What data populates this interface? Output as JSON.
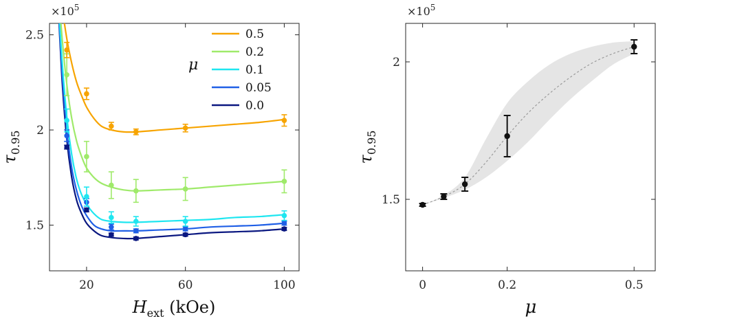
{
  "chart_data": [
    {
      "type": "line",
      "xlabel_main": "H",
      "xlabel_sub": "ext",
      "xlabel_unit": " (kOe)",
      "ylabel_main": "τ",
      "ylabel_sub": "0.95",
      "y_multiplier": "×10",
      "y_multiplier_exp": "5",
      "xlim": [
        5,
        106
      ],
      "ylim": [
        1.26,
        2.56
      ],
      "xticks": [
        20,
        60,
        100
      ],
      "xtick_labels": [
        "20",
        "60",
        "100"
      ],
      "ytick_labels": [
        "1.5",
        "2",
        "2.5"
      ],
      "yticks": [
        1.5,
        2.0,
        2.5
      ],
      "legend_title": "μ",
      "series": [
        {
          "name": "0.5",
          "color": "#F7A400",
          "x": [
            12,
            20,
            30,
            40,
            60,
            100
          ],
          "y": [
            2.42,
            2.19,
            2.02,
            1.99,
            2.01,
            2.05
          ],
          "err": [
            0.04,
            0.03,
            0.02,
            0.015,
            0.02,
            0.03
          ],
          "fit_x": [
            8,
            10,
            12,
            14,
            16,
            18,
            20,
            23,
            26,
            30,
            35,
            40,
            50,
            60,
            70,
            80,
            90,
            100
          ],
          "fit_y": [
            2.9,
            2.66,
            2.48,
            2.35,
            2.25,
            2.18,
            2.12,
            2.06,
            2.02,
            2.0,
            1.99,
            1.99,
            2.0,
            2.01,
            2.02,
            2.03,
            2.04,
            2.055
          ]
        },
        {
          "name": "0.2",
          "color": "#9FEA6A",
          "x": [
            12,
            20,
            30,
            40,
            60,
            100
          ],
          "y": [
            2.29,
            1.86,
            1.71,
            1.68,
            1.69,
            1.73
          ],
          "err": [
            0.11,
            0.08,
            0.07,
            0.06,
            0.06,
            0.06
          ],
          "fit_x": [
            8,
            10,
            12,
            14,
            16,
            18,
            20,
            23,
            26,
            30,
            35,
            40,
            50,
            60,
            70,
            80,
            90,
            100
          ],
          "fit_y": [
            2.85,
            2.5,
            2.24,
            2.06,
            1.94,
            1.86,
            1.8,
            1.75,
            1.72,
            1.7,
            1.685,
            1.68,
            1.685,
            1.69,
            1.7,
            1.71,
            1.72,
            1.73
          ]
        },
        {
          "name": "0.1",
          "color": "#1EE6F0",
          "x": [
            12,
            20,
            30,
            40,
            60,
            100
          ],
          "y": [
            2.05,
            1.65,
            1.54,
            1.52,
            1.52,
            1.55
          ],
          "err": [
            0.06,
            0.05,
            0.03,
            0.025,
            0.025,
            0.025
          ],
          "fit_x": [
            8,
            10,
            12,
            14,
            16,
            18,
            20,
            23,
            26,
            30,
            35,
            40,
            50,
            60,
            70,
            80,
            90,
            100
          ],
          "fit_y": [
            2.8,
            2.38,
            2.07,
            1.87,
            1.74,
            1.66,
            1.61,
            1.56,
            1.53,
            1.52,
            1.515,
            1.515,
            1.52,
            1.525,
            1.53,
            1.54,
            1.545,
            1.555
          ]
        },
        {
          "name": "0.05",
          "color": "#1F5FE6",
          "x": [
            12,
            20,
            30,
            40,
            60,
            100
          ],
          "y": [
            1.97,
            1.62,
            1.49,
            1.47,
            1.48,
            1.51
          ],
          "err": [
            0.03,
            0.02,
            0.015,
            0.01,
            0.01,
            0.01
          ],
          "fit_x": [
            8,
            10,
            12,
            14,
            16,
            18,
            20,
            23,
            26,
            30,
            35,
            40,
            50,
            60,
            70,
            80,
            90,
            100
          ],
          "fit_y": [
            2.8,
            2.32,
            2.0,
            1.8,
            1.68,
            1.6,
            1.55,
            1.5,
            1.48,
            1.47,
            1.47,
            1.47,
            1.475,
            1.48,
            1.49,
            1.495,
            1.5,
            1.51
          ]
        },
        {
          "name": "0.0",
          "color": "#0A1780",
          "x": [
            12,
            20,
            30,
            40,
            60,
            100
          ],
          "y": [
            1.91,
            1.58,
            1.45,
            1.43,
            1.45,
            1.48
          ],
          "err": [
            0.01,
            0.01,
            0.008,
            0.008,
            0.008,
            0.008
          ],
          "fit_x": [
            8,
            10,
            12,
            14,
            16,
            18,
            20,
            23,
            26,
            30,
            35,
            40,
            50,
            60,
            70,
            80,
            90,
            100
          ],
          "fit_y": [
            2.8,
            2.28,
            1.95,
            1.75,
            1.63,
            1.56,
            1.51,
            1.47,
            1.445,
            1.435,
            1.43,
            1.43,
            1.44,
            1.45,
            1.46,
            1.465,
            1.47,
            1.48
          ]
        }
      ]
    },
    {
      "type": "scatter",
      "xlabel_main": "μ",
      "ylabel_main": "τ",
      "ylabel_sub": "0.95",
      "y_multiplier": "×10",
      "y_multiplier_exp": "5",
      "xlim": [
        -0.04,
        0.55
      ],
      "ylim": [
        1.24,
        2.14
      ],
      "xticks": [
        0,
        0.2,
        0.5
      ],
      "xtick_labels": [
        "0",
        "0.2",
        "0.5"
      ],
      "yticks": [
        1.5,
        2.0
      ],
      "ytick_labels": [
        "1.5",
        "2"
      ],
      "series": [
        {
          "name": "tau",
          "color": "#111111",
          "x": [
            0,
            0.05,
            0.1,
            0.2,
            0.5
          ],
          "y": [
            1.48,
            1.51,
            1.555,
            1.73,
            2.055
          ],
          "err": [
            0.005,
            0.01,
            0.025,
            0.075,
            0.025
          ]
        }
      ],
      "fit": {
        "x": [
          0,
          0.05,
          0.1,
          0.15,
          0.2,
          0.25,
          0.3,
          0.35,
          0.4,
          0.45,
          0.5
        ],
        "y": [
          1.48,
          1.51,
          1.555,
          1.635,
          1.73,
          1.815,
          1.885,
          1.945,
          1.995,
          2.03,
          2.055
        ]
      },
      "band": {
        "x": [
          0,
          0.05,
          0.1,
          0.15,
          0.2,
          0.25,
          0.3,
          0.35,
          0.4,
          0.45,
          0.5
        ],
        "upper": [
          1.48,
          1.515,
          1.58,
          1.72,
          1.85,
          1.93,
          1.99,
          2.03,
          2.055,
          2.07,
          2.075
        ],
        "lower": [
          1.48,
          1.505,
          1.535,
          1.58,
          1.64,
          1.71,
          1.79,
          1.865,
          1.93,
          1.99,
          2.03
        ]
      },
      "band_color": "#E5E5E5"
    }
  ]
}
